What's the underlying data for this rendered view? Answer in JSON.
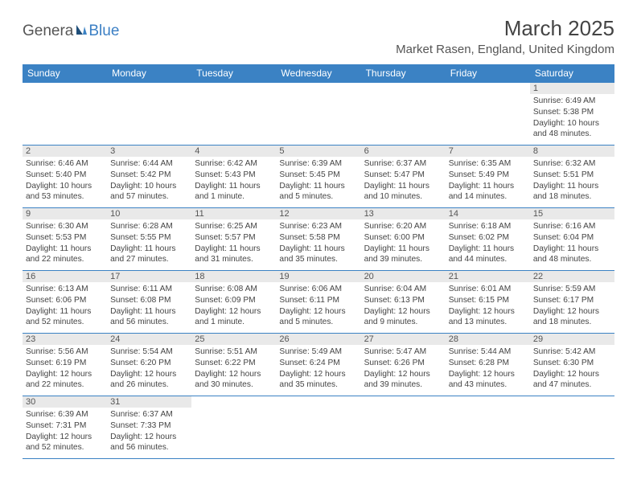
{
  "logo": {
    "part1": "Genera",
    "part2": "Blue"
  },
  "title": "March 2025",
  "location": "Market Rasen, England, United Kingdom",
  "header_bg": "#3b82c4",
  "header_fg": "#ffffff",
  "daynum_bg": "#e9e9e9",
  "border_color": "#3b82c4",
  "weekdays": [
    "Sunday",
    "Monday",
    "Tuesday",
    "Wednesday",
    "Thursday",
    "Friday",
    "Saturday"
  ],
  "weeks": [
    [
      {
        "day": "",
        "lines": []
      },
      {
        "day": "",
        "lines": []
      },
      {
        "day": "",
        "lines": []
      },
      {
        "day": "",
        "lines": []
      },
      {
        "day": "",
        "lines": []
      },
      {
        "day": "",
        "lines": []
      },
      {
        "day": "1",
        "lines": [
          "Sunrise: 6:49 AM",
          "Sunset: 5:38 PM",
          "Daylight: 10 hours",
          "and 48 minutes."
        ]
      }
    ],
    [
      {
        "day": "2",
        "lines": [
          "Sunrise: 6:46 AM",
          "Sunset: 5:40 PM",
          "Daylight: 10 hours",
          "and 53 minutes."
        ]
      },
      {
        "day": "3",
        "lines": [
          "Sunrise: 6:44 AM",
          "Sunset: 5:42 PM",
          "Daylight: 10 hours",
          "and 57 minutes."
        ]
      },
      {
        "day": "4",
        "lines": [
          "Sunrise: 6:42 AM",
          "Sunset: 5:43 PM",
          "Daylight: 11 hours",
          "and 1 minute."
        ]
      },
      {
        "day": "5",
        "lines": [
          "Sunrise: 6:39 AM",
          "Sunset: 5:45 PM",
          "Daylight: 11 hours",
          "and 5 minutes."
        ]
      },
      {
        "day": "6",
        "lines": [
          "Sunrise: 6:37 AM",
          "Sunset: 5:47 PM",
          "Daylight: 11 hours",
          "and 10 minutes."
        ]
      },
      {
        "day": "7",
        "lines": [
          "Sunrise: 6:35 AM",
          "Sunset: 5:49 PM",
          "Daylight: 11 hours",
          "and 14 minutes."
        ]
      },
      {
        "day": "8",
        "lines": [
          "Sunrise: 6:32 AM",
          "Sunset: 5:51 PM",
          "Daylight: 11 hours",
          "and 18 minutes."
        ]
      }
    ],
    [
      {
        "day": "9",
        "lines": [
          "Sunrise: 6:30 AM",
          "Sunset: 5:53 PM",
          "Daylight: 11 hours",
          "and 22 minutes."
        ]
      },
      {
        "day": "10",
        "lines": [
          "Sunrise: 6:28 AM",
          "Sunset: 5:55 PM",
          "Daylight: 11 hours",
          "and 27 minutes."
        ]
      },
      {
        "day": "11",
        "lines": [
          "Sunrise: 6:25 AM",
          "Sunset: 5:57 PM",
          "Daylight: 11 hours",
          "and 31 minutes."
        ]
      },
      {
        "day": "12",
        "lines": [
          "Sunrise: 6:23 AM",
          "Sunset: 5:58 PM",
          "Daylight: 11 hours",
          "and 35 minutes."
        ]
      },
      {
        "day": "13",
        "lines": [
          "Sunrise: 6:20 AM",
          "Sunset: 6:00 PM",
          "Daylight: 11 hours",
          "and 39 minutes."
        ]
      },
      {
        "day": "14",
        "lines": [
          "Sunrise: 6:18 AM",
          "Sunset: 6:02 PM",
          "Daylight: 11 hours",
          "and 44 minutes."
        ]
      },
      {
        "day": "15",
        "lines": [
          "Sunrise: 6:16 AM",
          "Sunset: 6:04 PM",
          "Daylight: 11 hours",
          "and 48 minutes."
        ]
      }
    ],
    [
      {
        "day": "16",
        "lines": [
          "Sunrise: 6:13 AM",
          "Sunset: 6:06 PM",
          "Daylight: 11 hours",
          "and 52 minutes."
        ]
      },
      {
        "day": "17",
        "lines": [
          "Sunrise: 6:11 AM",
          "Sunset: 6:08 PM",
          "Daylight: 11 hours",
          "and 56 minutes."
        ]
      },
      {
        "day": "18",
        "lines": [
          "Sunrise: 6:08 AM",
          "Sunset: 6:09 PM",
          "Daylight: 12 hours",
          "and 1 minute."
        ]
      },
      {
        "day": "19",
        "lines": [
          "Sunrise: 6:06 AM",
          "Sunset: 6:11 PM",
          "Daylight: 12 hours",
          "and 5 minutes."
        ]
      },
      {
        "day": "20",
        "lines": [
          "Sunrise: 6:04 AM",
          "Sunset: 6:13 PM",
          "Daylight: 12 hours",
          "and 9 minutes."
        ]
      },
      {
        "day": "21",
        "lines": [
          "Sunrise: 6:01 AM",
          "Sunset: 6:15 PM",
          "Daylight: 12 hours",
          "and 13 minutes."
        ]
      },
      {
        "day": "22",
        "lines": [
          "Sunrise: 5:59 AM",
          "Sunset: 6:17 PM",
          "Daylight: 12 hours",
          "and 18 minutes."
        ]
      }
    ],
    [
      {
        "day": "23",
        "lines": [
          "Sunrise: 5:56 AM",
          "Sunset: 6:19 PM",
          "Daylight: 12 hours",
          "and 22 minutes."
        ]
      },
      {
        "day": "24",
        "lines": [
          "Sunrise: 5:54 AM",
          "Sunset: 6:20 PM",
          "Daylight: 12 hours",
          "and 26 minutes."
        ]
      },
      {
        "day": "25",
        "lines": [
          "Sunrise: 5:51 AM",
          "Sunset: 6:22 PM",
          "Daylight: 12 hours",
          "and 30 minutes."
        ]
      },
      {
        "day": "26",
        "lines": [
          "Sunrise: 5:49 AM",
          "Sunset: 6:24 PM",
          "Daylight: 12 hours",
          "and 35 minutes."
        ]
      },
      {
        "day": "27",
        "lines": [
          "Sunrise: 5:47 AM",
          "Sunset: 6:26 PM",
          "Daylight: 12 hours",
          "and 39 minutes."
        ]
      },
      {
        "day": "28",
        "lines": [
          "Sunrise: 5:44 AM",
          "Sunset: 6:28 PM",
          "Daylight: 12 hours",
          "and 43 minutes."
        ]
      },
      {
        "day": "29",
        "lines": [
          "Sunrise: 5:42 AM",
          "Sunset: 6:30 PM",
          "Daylight: 12 hours",
          "and 47 minutes."
        ]
      }
    ],
    [
      {
        "day": "30",
        "lines": [
          "Sunrise: 6:39 AM",
          "Sunset: 7:31 PM",
          "Daylight: 12 hours",
          "and 52 minutes."
        ]
      },
      {
        "day": "31",
        "lines": [
          "Sunrise: 6:37 AM",
          "Sunset: 7:33 PM",
          "Daylight: 12 hours",
          "and 56 minutes."
        ]
      },
      {
        "day": "",
        "lines": []
      },
      {
        "day": "",
        "lines": []
      },
      {
        "day": "",
        "lines": []
      },
      {
        "day": "",
        "lines": []
      },
      {
        "day": "",
        "lines": []
      }
    ]
  ]
}
